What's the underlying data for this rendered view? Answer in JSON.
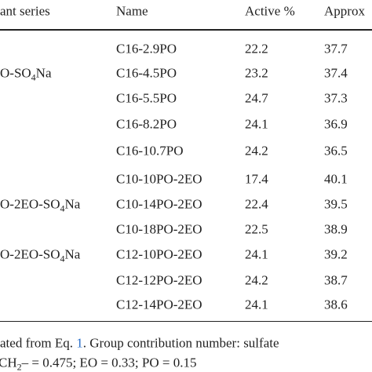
{
  "table": {
    "header": [
      "ant series",
      "Name",
      "Active %",
      "Approx"
    ],
    "series_labels": [
      {
        "parts": [
          "O-SO",
          "4",
          "Na"
        ]
      },
      {
        "parts": [
          "O-2EO-SO",
          "4",
          "Na"
        ]
      },
      {
        "parts": [
          "O-2EO-SO",
          "4",
          "Na"
        ]
      }
    ],
    "rows": [
      [
        "C16-2.9PO",
        "22.2",
        "37.7"
      ],
      [
        "C16-4.5PO",
        "23.2",
        "37.4"
      ],
      [
        "C16-5.5PO",
        "24.7",
        "37.3"
      ],
      [
        "C16-8.2PO",
        "24.1",
        "36.9"
      ],
      [
        "C16-10.7PO",
        "24.2",
        "36.5"
      ],
      [
        "C10-10PO-2EO",
        "17.4",
        "40.1"
      ],
      [
        "C10-14PO-2EO",
        "22.4",
        "39.5"
      ],
      [
        "C10-18PO-2EO",
        "22.5",
        "38.9"
      ],
      [
        "C12-10PO-2EO",
        "24.1",
        "39.2"
      ],
      [
        "C12-12PO-2EO",
        "24.2",
        "38.7"
      ],
      [
        "C12-14PO-2EO",
        "24.1",
        "38.6"
      ]
    ]
  },
  "footnote": {
    "line1": [
      "ated from Eq. ",
      "1",
      ". Group contribution number: sulfate"
    ],
    "line2": [
      "CH",
      "2",
      "– = 0.475; EO = 0.33; PO = 0.15"
    ]
  }
}
